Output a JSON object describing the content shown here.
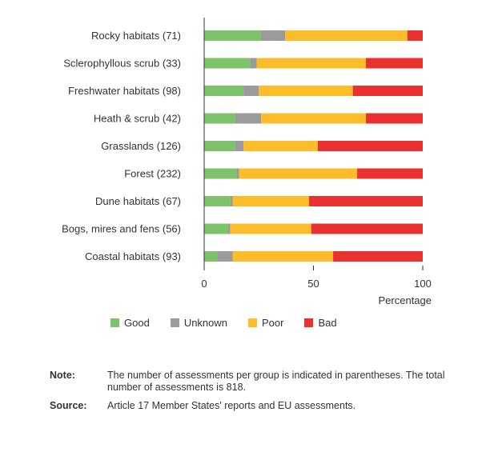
{
  "chart_data": {
    "type": "bar",
    "orientation": "horizontal",
    "stacked": true,
    "categories": [
      "Rocky habitats (71)",
      "Sclerophyllous scrub (33)",
      "Freshwater habitats (98)",
      "Heath & scrub (42)",
      "Grasslands (126)",
      "Forest (232)",
      "Dune habitats (67)",
      "Bogs, mires and fens (56)",
      "Coastal habitats (93)"
    ],
    "series": [
      {
        "name": "Good",
        "color": "#7cc36a",
        "values": [
          26,
          21,
          18,
          14,
          14,
          15,
          12,
          11,
          6
        ]
      },
      {
        "name": "Unknown",
        "color": "#9b9b9b",
        "values": [
          11,
          3,
          7,
          12,
          4,
          1,
          1,
          1,
          7
        ]
      },
      {
        "name": "Poor",
        "color": "#fdbd2b",
        "values": [
          56,
          50,
          43,
          48,
          34,
          54,
          35,
          37,
          46
        ]
      },
      {
        "name": "Bad",
        "color": "#e9312f",
        "values": [
          7,
          26,
          32,
          26,
          48,
          30,
          52,
          51,
          41
        ]
      }
    ],
    "xlabel": "Percentage",
    "xlim": [
      0,
      100
    ],
    "xticks": [
      0,
      50,
      100
    ],
    "legend_position": "bottom"
  },
  "notes": {
    "note_label": "Note:",
    "note_text": "The number of assessments per group is indicated in parentheses. The total number of assessments is 818.",
    "source_label": "Source:",
    "source_text": "Article 17 Member States' reports and EU assessments."
  }
}
